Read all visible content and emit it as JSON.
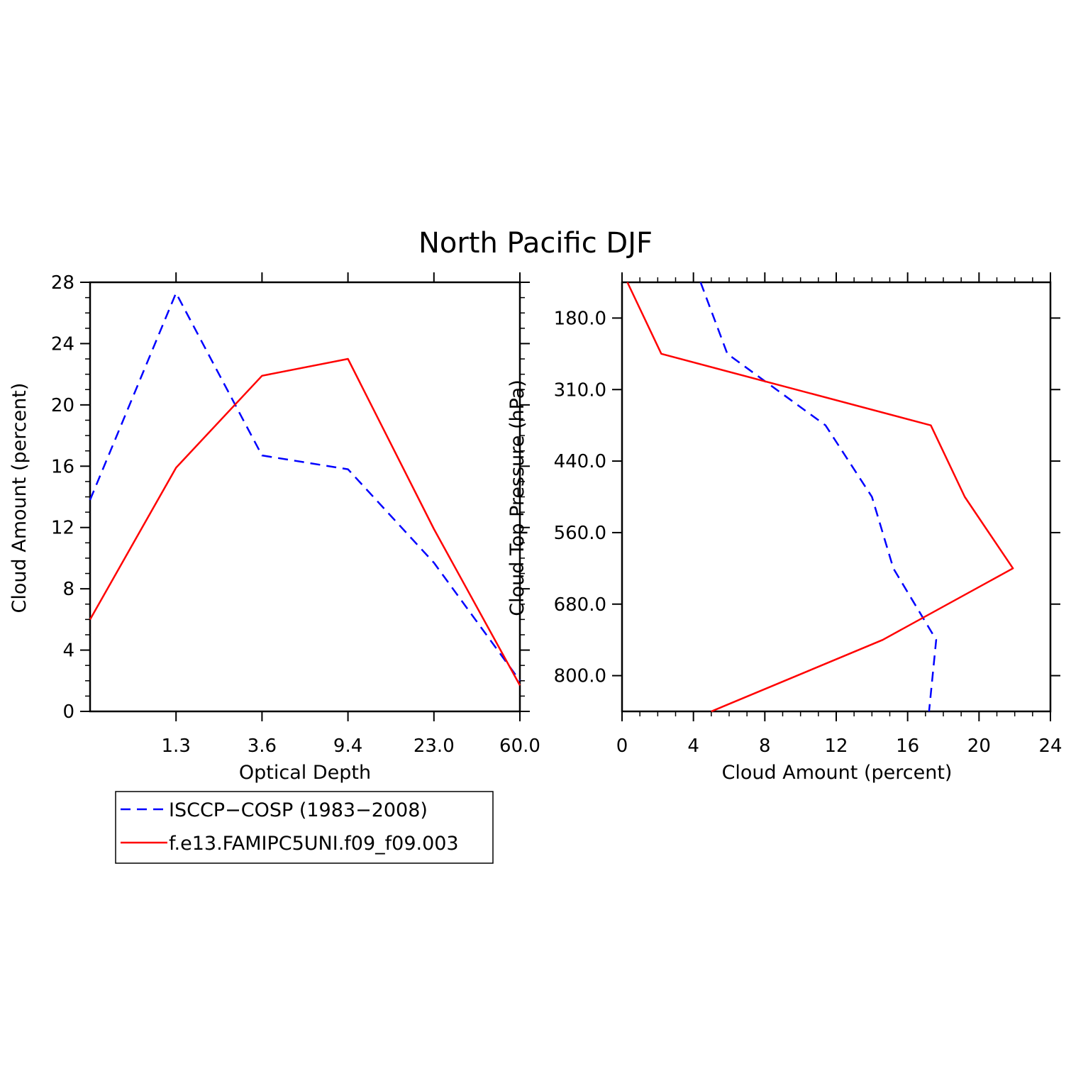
{
  "title": "North Pacific DJF",
  "colors": {
    "obs": "#0000ff",
    "model": "#ff0000",
    "axis": "#000000"
  },
  "legend": {
    "items": [
      {
        "label": "ISCCP−COSP (1983−2008)",
        "series": "obs"
      },
      {
        "label": "f.e13.FAMIPC5UNI.f09_f09.003",
        "series": "model"
      }
    ]
  },
  "chart_data": [
    {
      "type": "line",
      "title": "North Pacific DJF",
      "xlabel": "Optical Depth",
      "ylabel": "Cloud Amount (percent)",
      "x_tick_labels": [
        "1.3",
        "3.6",
        "9.4",
        "23.0",
        "60.0"
      ],
      "y_ticks": [
        "0",
        "4",
        "8",
        "12",
        "16",
        "20",
        "24",
        "28"
      ],
      "ylim": [
        0,
        28
      ],
      "x": [
        0,
        1,
        2,
        3,
        4,
        5
      ],
      "series": [
        {
          "name": "ISCCP−COSP (1983−2008)",
          "style": "dashed",
          "values": [
            13.8,
            27.3,
            16.7,
            15.8,
            9.7,
            2.0
          ]
        },
        {
          "name": "f.e13.FAMIPC5UNI.f09_f09.003",
          "style": "solid",
          "values": [
            6.0,
            15.9,
            21.9,
            23.0,
            11.9,
            1.7
          ]
        }
      ]
    },
    {
      "type": "line",
      "orientation": "horizontal",
      "xlabel": "Cloud Amount (percent)",
      "ylabel": "Cloud Top Pressure (hPa)",
      "x_ticks": [
        "0",
        "4",
        "8",
        "12",
        "16",
        "20",
        "24"
      ],
      "xlim": [
        0,
        24
      ],
      "y_tick_labels": [
        "180.0",
        "310.0",
        "440.0",
        "560.0",
        "680.0",
        "800.0"
      ],
      "series": [
        {
          "name": "ISCCP−COSP (1983−2008)",
          "style": "dashed",
          "values": [
            4.4,
            5.9,
            11.4,
            14.0,
            15.2,
            17.6,
            17.2
          ]
        },
        {
          "name": "f.e13.FAMIPC5UNI.f09_f09.003",
          "style": "solid",
          "values": [
            0.3,
            2.2,
            17.3,
            19.2,
            21.9,
            14.6,
            5.0
          ]
        }
      ]
    }
  ]
}
